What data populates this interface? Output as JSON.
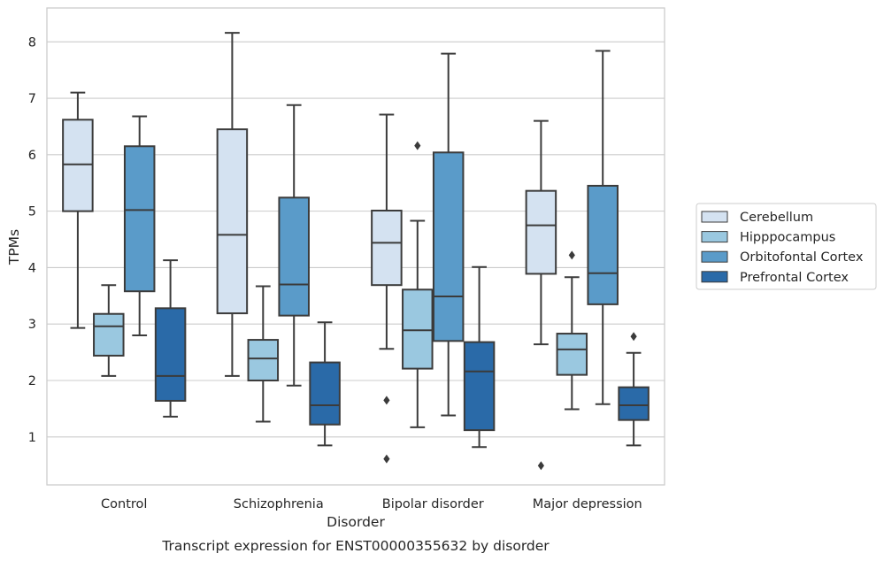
{
  "caption": "Transcript expression for ENST00000355632 by disorder",
  "chart_data": {
    "type": "box",
    "xlabel": "Disorder",
    "ylabel": "TPMs",
    "ylim": [
      0.15,
      8.6
    ],
    "yticks": [
      1,
      2,
      3,
      4,
      5,
      6,
      7,
      8
    ],
    "categories": [
      "Control",
      "Schizophrenia",
      "Bipolar disorder",
      "Major depression"
    ],
    "grid": "horizontal",
    "legend_position": "right",
    "series": [
      {
        "name": "Cerebellum",
        "color": "#d4e2f1",
        "boxes": [
          {
            "whisker_low": 2.93,
            "q1": 5.0,
            "median": 5.83,
            "q3": 6.62,
            "whisker_high": 7.1,
            "outliers": []
          },
          {
            "whisker_low": 2.08,
            "q1": 3.19,
            "median": 4.58,
            "q3": 6.45,
            "whisker_high": 8.16,
            "outliers": []
          },
          {
            "whisker_low": 2.56,
            "q1": 3.69,
            "median": 4.44,
            "q3": 5.01,
            "whisker_high": 6.71,
            "outliers": [
              1.65,
              0.61
            ]
          },
          {
            "whisker_low": 2.64,
            "q1": 3.89,
            "median": 4.75,
            "q3": 5.36,
            "whisker_high": 6.6,
            "outliers": [
              0.49
            ]
          }
        ]
      },
      {
        "name": "Hipppocampus",
        "color": "#9ac8e0",
        "boxes": [
          {
            "whisker_low": 2.08,
            "q1": 2.44,
            "median": 2.96,
            "q3": 3.18,
            "whisker_high": 3.69,
            "outliers": []
          },
          {
            "whisker_low": 1.27,
            "q1": 2.0,
            "median": 2.39,
            "q3": 2.72,
            "whisker_high": 3.67,
            "outliers": []
          },
          {
            "whisker_low": 1.17,
            "q1": 2.21,
            "median": 2.89,
            "q3": 3.61,
            "whisker_high": 4.83,
            "outliers": [
              6.16
            ]
          },
          {
            "whisker_low": 1.49,
            "q1": 2.1,
            "median": 2.55,
            "q3": 2.83,
            "whisker_high": 3.83,
            "outliers": [
              4.22
            ]
          }
        ]
      },
      {
        "name": "Orbitofontal Cortex",
        "color": "#5a9bc9",
        "boxes": [
          {
            "whisker_low": 2.8,
            "q1": 3.58,
            "median": 5.02,
            "q3": 6.15,
            "whisker_high": 6.68,
            "outliers": []
          },
          {
            "whisker_low": 1.91,
            "q1": 3.15,
            "median": 3.7,
            "q3": 5.24,
            "whisker_high": 6.88,
            "outliers": []
          },
          {
            "whisker_low": 1.38,
            "q1": 2.7,
            "median": 3.49,
            "q3": 6.04,
            "whisker_high": 7.79,
            "outliers": []
          },
          {
            "whisker_low": 1.58,
            "q1": 3.35,
            "median": 3.9,
            "q3": 5.45,
            "whisker_high": 7.84,
            "outliers": []
          }
        ]
      },
      {
        "name": "Prefrontal Cortex",
        "color": "#2a6aa8",
        "boxes": [
          {
            "whisker_low": 1.36,
            "q1": 1.64,
            "median": 2.08,
            "q3": 3.28,
            "whisker_high": 4.13,
            "outliers": []
          },
          {
            "whisker_low": 0.85,
            "q1": 1.22,
            "median": 1.56,
            "q3": 2.32,
            "whisker_high": 3.03,
            "outliers": []
          },
          {
            "whisker_low": 0.82,
            "q1": 1.12,
            "median": 2.16,
            "q3": 2.68,
            "whisker_high": 4.01,
            "outliers": []
          },
          {
            "whisker_low": 0.85,
            "q1": 1.3,
            "median": 1.56,
            "q3": 1.88,
            "whisker_high": 2.49,
            "outliers": [
              2.78
            ]
          }
        ]
      }
    ]
  }
}
